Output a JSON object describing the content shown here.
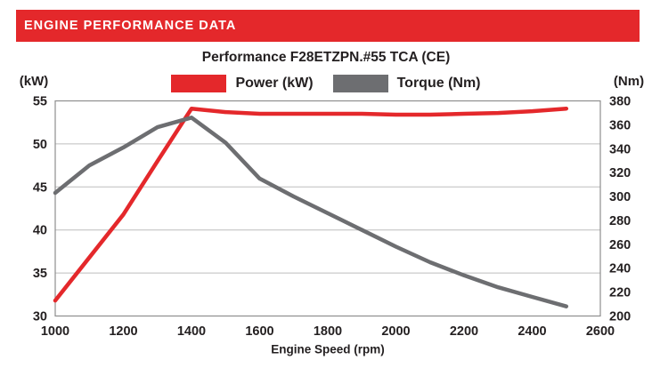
{
  "header": {
    "title": "ENGINE PERFORMANCE DATA",
    "bg_color": "#e4282b",
    "text_color": "#ffffff"
  },
  "chart_data": {
    "type": "line",
    "title": "Performance F28ETZPN.#55 TCA (CE)",
    "xlabel": "Engine Speed (rpm)",
    "y_left_label": "(kW)",
    "y_right_label": "(Nm)",
    "xlim": [
      1000,
      2600
    ],
    "x_ticks": [
      1000,
      1200,
      1400,
      1600,
      1800,
      2000,
      2200,
      2400,
      2600
    ],
    "y_left_lim": [
      30,
      55
    ],
    "y_left_ticks": [
      30,
      35,
      40,
      45,
      50,
      55
    ],
    "y_right_lim": [
      200,
      380
    ],
    "y_right_ticks": [
      200,
      220,
      240,
      260,
      280,
      300,
      320,
      340,
      360,
      380
    ],
    "grid": "horizontal-only",
    "legend_position": "top-center",
    "colors": {
      "grid": "#bdbdbd",
      "border": "#8e8e8e",
      "text": "#231f20"
    },
    "series": [
      {
        "name": "Power (kW)",
        "axis": "left",
        "color": "#e4282b",
        "x": [
          1000,
          1100,
          1200,
          1300,
          1400,
          1500,
          1600,
          1700,
          1800,
          1900,
          2000,
          2100,
          2200,
          2300,
          2400,
          2500
        ],
        "values": [
          31.8,
          36.8,
          41.8,
          48.0,
          54.1,
          53.7,
          53.5,
          53.5,
          53.5,
          53.5,
          53.4,
          53.4,
          53.5,
          53.6,
          53.8,
          54.1
        ]
      },
      {
        "name": "Torque (Nm)",
        "axis": "right",
        "color": "#6d6e71",
        "x": [
          1000,
          1100,
          1200,
          1300,
          1400,
          1500,
          1600,
          1700,
          1800,
          1900,
          2000,
          2100,
          2200,
          2300,
          2400,
          2500
        ],
        "values": [
          303,
          326,
          341,
          358,
          366,
          345,
          315,
          300,
          286,
          272,
          258,
          245,
          234,
          224,
          216,
          208
        ]
      }
    ]
  }
}
